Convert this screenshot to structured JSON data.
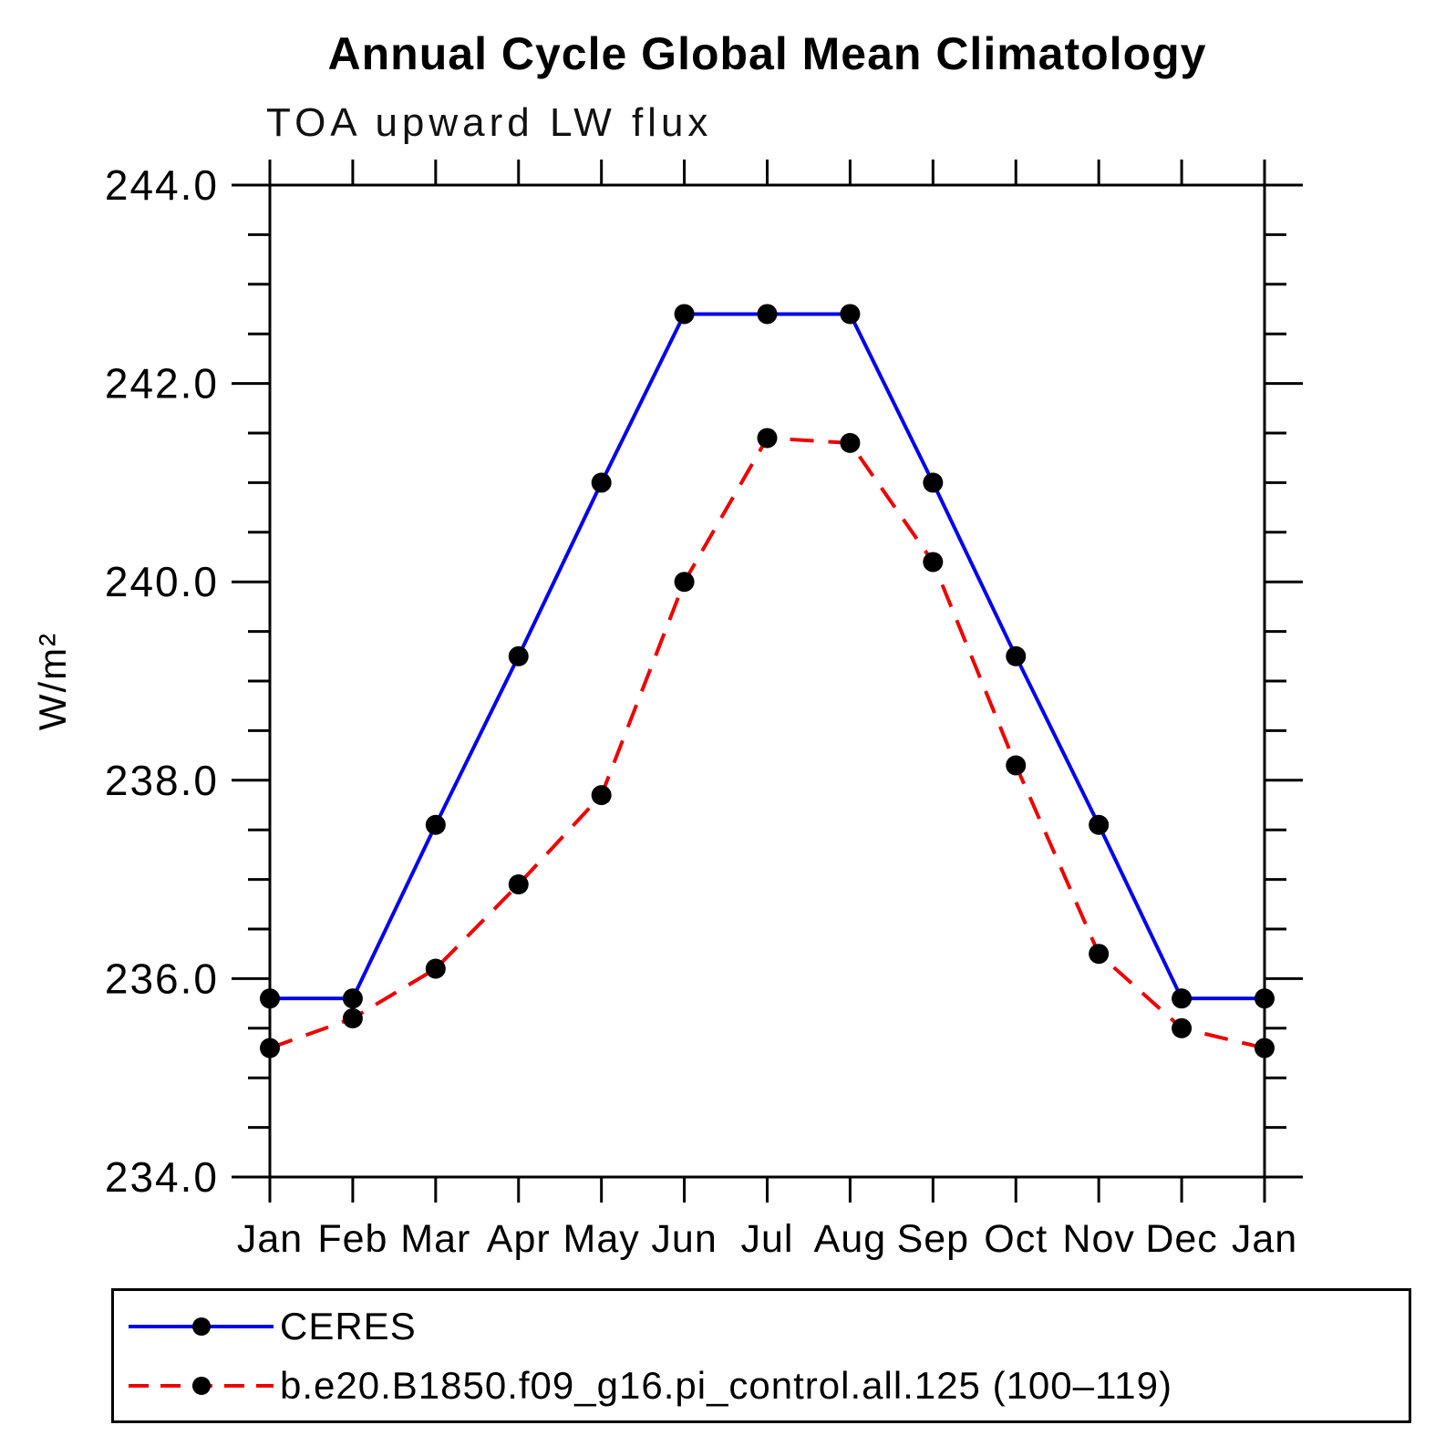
{
  "chart_data": {
    "type": "line",
    "title": "Annual Cycle Global Mean Climatology",
    "subtitle": "TOA upward LW flux",
    "ylabel": "W/m²",
    "categories": [
      "Jan",
      "Feb",
      "Mar",
      "Apr",
      "May",
      "Jun",
      "Jul",
      "Aug",
      "Sep",
      "Oct",
      "Nov",
      "Dec",
      "Jan"
    ],
    "ylim": [
      234.0,
      244.0
    ],
    "ytick_interval": 2.0,
    "yminor_interval": 0.5,
    "ytick_labels": [
      "244.0",
      "242.0",
      "240.0",
      "238.0",
      "236.0",
      "234.0"
    ],
    "grid": false,
    "legend_position": "bottom",
    "marker": "filled-circle",
    "marker_color": "#000000",
    "series": [
      {
        "name": "CERES",
        "style": "solid",
        "color": "#0000ee",
        "values": [
          235.8,
          235.8,
          237.55,
          239.25,
          241.0,
          242.7,
          242.7,
          242.7,
          241.0,
          239.25,
          237.55,
          235.8,
          235.8
        ]
      },
      {
        "name": "b.e20.B1850.f09_g16.pi_control.all.125 (100–119)",
        "style": "dashed",
        "color": "#ee0000",
        "values": [
          235.3,
          235.6,
          236.1,
          236.95,
          237.85,
          240.0,
          241.45,
          241.4,
          240.2,
          238.15,
          236.25,
          235.5,
          235.3
        ]
      }
    ]
  }
}
